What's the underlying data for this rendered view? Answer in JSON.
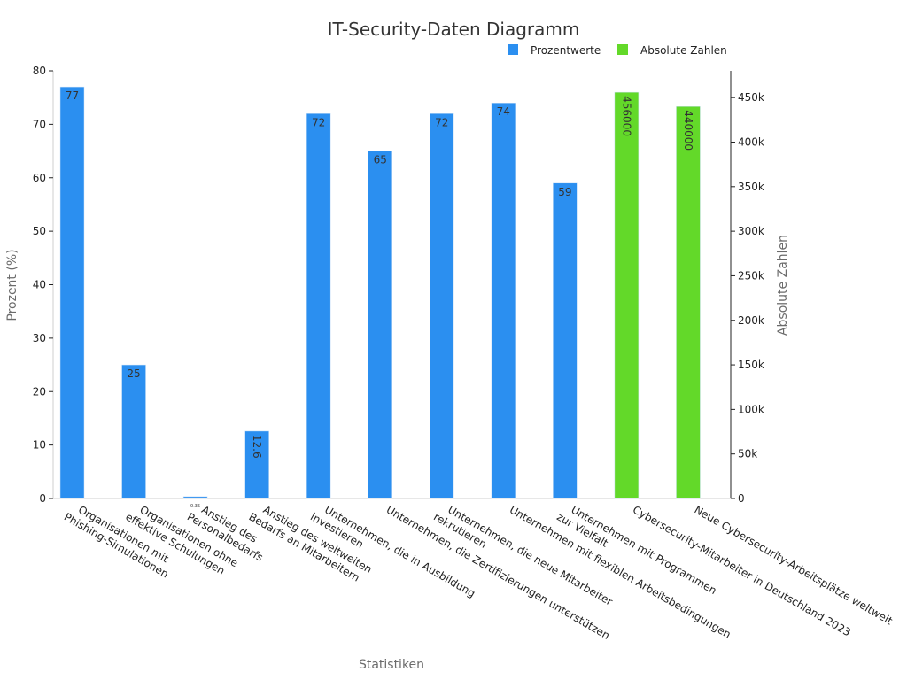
{
  "chart_data": {
    "type": "bar",
    "title": "IT-Security-Daten Diagramm",
    "xlabel": "Statistiken",
    "ylabel_left": "Prozent (%)",
    "ylabel_right": "Absolute Zahlen",
    "ylim_left": [
      0,
      80
    ],
    "ylim_right": [
      0,
      480000
    ],
    "left_ticks": [
      0,
      10,
      20,
      30,
      40,
      50,
      60,
      70,
      80
    ],
    "right_ticks": [
      0,
      50000,
      100000,
      150000,
      200000,
      250000,
      300000,
      350000,
      400000,
      450000
    ],
    "right_tick_labels": [
      "0",
      "50k",
      "100k",
      "150k",
      "200k",
      "250k",
      "300k",
      "350k",
      "400k",
      "450k"
    ],
    "legend_position": "top-right",
    "categories": [
      [
        "Organisationen mit",
        "Phishing-Simulationen"
      ],
      [
        "Organisationen ohne",
        "effektive Schulungen"
      ],
      [
        "Anstieg des",
        "Personalbedarfs"
      ],
      [
        "Anstieg des weltweiten",
        "Bedarfs an Mitarbeitern"
      ],
      [
        "Unternehmen, die in Ausbildung",
        "investieren"
      ],
      [
        "Unternehmen, die Zertifizierungen unterstützen"
      ],
      [
        "Unternehmen, die neue Mitarbeiter",
        "rekrutieren"
      ],
      [
        "Unternehmen mit flexiblen Arbeitsbedingungen"
      ],
      [
        "Unternehmen mit Programmen",
        "zur Vielfalt"
      ],
      [
        "Cybersecurity-Mitarbeiter in Deutschland 2023"
      ],
      [
        "Neue Cybersecurity-Arbeitsplätze weltweit"
      ]
    ],
    "series": [
      {
        "name": "Prozentwerte",
        "axis": "left",
        "color": "#2b8ff0",
        "values": [
          77,
          25,
          0.35,
          12.6,
          72,
          65,
          72,
          74,
          59,
          null,
          null
        ],
        "labels": [
          "77",
          "25",
          "0.35",
          "12.6",
          "72",
          "65",
          "72",
          "74",
          "59",
          "",
          ""
        ]
      },
      {
        "name": "Absolute Zahlen",
        "axis": "right",
        "color": "#63d929",
        "values": [
          null,
          null,
          null,
          null,
          null,
          null,
          null,
          null,
          null,
          456000,
          440000
        ],
        "labels": [
          "",
          "",
          "",
          "",
          "",
          "",
          "",
          "",
          "",
          "456000",
          "440000"
        ]
      }
    ]
  }
}
